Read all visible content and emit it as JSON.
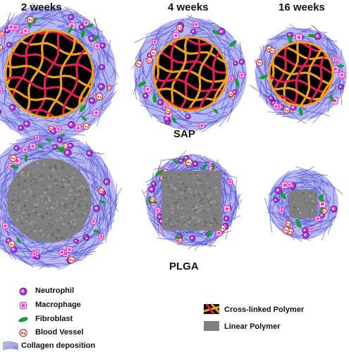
{
  "columns": [
    "2 weeks",
    "4 weeks",
    "16 weeks"
  ],
  "rows": [
    "SAP",
    "PLGA"
  ],
  "legend_cells": [
    {
      "label": "Neutrophil",
      "icon": "neutrophil-icon"
    },
    {
      "label": "Macrophage",
      "icon": "macrophage-icon"
    },
    {
      "label": "Fibroblast",
      "icon": "fibroblast-icon"
    },
    {
      "label": "Blood Vessel",
      "icon": "blood-vessel-icon"
    },
    {
      "label": "Collagen deposition",
      "icon": "collagen-icon"
    }
  ],
  "legend_polymers": [
    {
      "label": "Cross-linked Polymer",
      "icon": "cross-linked-polymer-icon"
    },
    {
      "label": "Linear Polymer",
      "icon": "linear-polymer-icon"
    }
  ],
  "colors": {
    "collagen": "#5a5ad6",
    "collagen_fill": "#7b7be8",
    "neutrophil": "#b030d8",
    "macrophage": "#e040c0",
    "fibroblast": "#1a9a3a",
    "vessel": "#e03030",
    "mesh_orange": "#f0a020",
    "mesh_red": "#e02050",
    "linear_polymer": "#808080"
  }
}
